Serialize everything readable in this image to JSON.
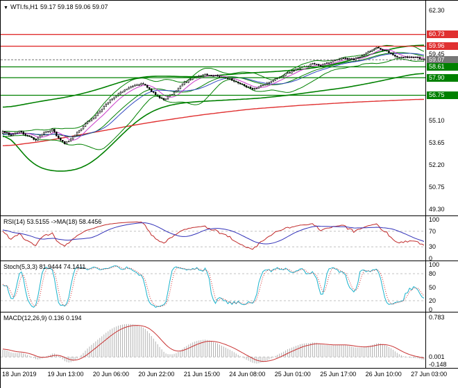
{
  "colors": {
    "resistance": "#e03030",
    "support": "#008000",
    "current": "#777777",
    "band": "#008000",
    "trend": "#e03030",
    "ma_blue": "#3048c0",
    "ma_magenta": "#c838c8",
    "rsi_line": "#c02828",
    "rsi_ma": "#3030b8",
    "stoch_k": "#18b2cc",
    "stoch_d": "#d03030",
    "macd_hist": "#b0b0b0",
    "macd_signal": "#c83030",
    "level": "#c0c0c0",
    "candle": "#000000"
  },
  "chart_data": [
    {
      "type": "candlestick",
      "marker": "▼",
      "title": "WTI.fs,H1",
      "quote": "59.17 59.18 59.06 59.07",
      "quote_ohlc": {
        "open": "59.17",
        "high": "59.18",
        "low": "59.06",
        "close": "59.07"
      },
      "y_axis": {
        "min": 49.3,
        "max": 62.3,
        "tick_labels": [
          "62.30",
          "59.45",
          "55.10",
          "53.65",
          "52.20",
          "50.75",
          "49.30"
        ]
      },
      "price_lines": [
        {
          "label": "60.73",
          "price": 60.73,
          "kind": "resistance"
        },
        {
          "label": "59.96",
          "price": 59.96,
          "kind": "resistance"
        },
        {
          "label": "59.07",
          "price": 59.07,
          "kind": "current"
        },
        {
          "label": "58.61",
          "price": 58.61,
          "kind": "support"
        },
        {
          "label": "57.90",
          "price": 57.9,
          "kind": "support"
        },
        {
          "label": "56.75",
          "price": 56.75,
          "kind": "support"
        }
      ],
      "bars_visible": 205,
      "close_anchors": [
        [
          0,
          54.35
        ],
        [
          4,
          54.15
        ],
        [
          8,
          54.4
        ],
        [
          12,
          54.1
        ],
        [
          16,
          53.85
        ],
        [
          20,
          54.3
        ],
        [
          24,
          54.5
        ],
        [
          27,
          53.95
        ],
        [
          30,
          53.55
        ],
        [
          34,
          54.05
        ],
        [
          38,
          54.6
        ],
        [
          42,
          55.1
        ],
        [
          46,
          55.55
        ],
        [
          52,
          56.45
        ],
        [
          58,
          57.05
        ],
        [
          63,
          57.35
        ],
        [
          68,
          57.5
        ],
        [
          73,
          56.9
        ],
        [
          78,
          56.45
        ],
        [
          83,
          56.95
        ],
        [
          88,
          57.6
        ],
        [
          93,
          57.9
        ],
        [
          98,
          58.1
        ],
        [
          104,
          58.0
        ],
        [
          110,
          57.8
        ],
        [
          116,
          57.45
        ],
        [
          121,
          57.1
        ],
        [
          126,
          57.45
        ],
        [
          132,
          57.8
        ],
        [
          138,
          58.2
        ],
        [
          144,
          58.55
        ],
        [
          150,
          58.8
        ],
        [
          154,
          58.7
        ],
        [
          160,
          59.0
        ],
        [
          165,
          59.2
        ],
        [
          170,
          59.05
        ],
        [
          176,
          59.5
        ],
        [
          181,
          59.85
        ],
        [
          186,
          59.65
        ],
        [
          190,
          59.3
        ],
        [
          194,
          59.2
        ],
        [
          198,
          59.3
        ],
        [
          202,
          59.15
        ],
        [
          204,
          59.07
        ]
      ],
      "overlay_lines": {
        "band_upper": [
          [
            0,
            55.9
          ],
          [
            10,
            56.15
          ],
          [
            20,
            56.4
          ],
          [
            30,
            56.6
          ],
          [
            40,
            56.9
          ],
          [
            50,
            57.3
          ],
          [
            60,
            57.75
          ],
          [
            70,
            58.0
          ],
          [
            80,
            58.0
          ],
          [
            92,
            57.95
          ],
          [
            104,
            58.05
          ],
          [
            118,
            58.2
          ],
          [
            132,
            58.3
          ],
          [
            146,
            58.45
          ],
          [
            158,
            58.7
          ],
          [
            170,
            59.1
          ],
          [
            180,
            59.5
          ],
          [
            190,
            59.85
          ],
          [
            198,
            60.0
          ],
          [
            204,
            60.05
          ]
        ],
        "band_lower": [
          [
            0,
            54.6
          ],
          [
            6,
            53.6
          ],
          [
            12,
            52.5
          ],
          [
            18,
            51.95
          ],
          [
            26,
            51.75
          ],
          [
            36,
            51.85
          ],
          [
            44,
            52.4
          ],
          [
            52,
            53.4
          ],
          [
            60,
            54.5
          ],
          [
            68,
            55.4
          ],
          [
            76,
            55.95
          ],
          [
            86,
            56.25
          ],
          [
            96,
            56.35
          ],
          [
            110,
            56.45
          ],
          [
            124,
            56.55
          ],
          [
            138,
            56.75
          ],
          [
            152,
            57.0
          ],
          [
            166,
            57.25
          ],
          [
            180,
            57.6
          ],
          [
            192,
            57.95
          ],
          [
            204,
            58.25
          ]
        ],
        "trend_line": [
          [
            0,
            53.4
          ],
          [
            20,
            53.75
          ],
          [
            45,
            54.35
          ],
          [
            70,
            54.95
          ],
          [
            95,
            55.45
          ],
          [
            120,
            55.85
          ],
          [
            145,
            56.1
          ],
          [
            170,
            56.3
          ],
          [
            204,
            56.5
          ]
        ]
      },
      "x_labels": [
        "18 Jun 2019",
        "19 Jun 13:00",
        "20 Jun 06:00",
        "20 Jun 22:00",
        "21 Jun 15:00",
        "24 Jun 08:00",
        "25 Jun 01:00",
        "25 Jun 17:00",
        "26 Jun 10:00",
        "27 Jun 03:00"
      ],
      "x_label_indices": [
        0,
        22,
        44,
        66,
        88,
        110,
        132,
        154,
        176,
        198
      ]
    },
    {
      "type": "line",
      "name": "RSI",
      "label": "RSI(14) 53.5155 ->MA(18) 58.4456",
      "params": "RSI(14), MA(18)",
      "values": [
        "53.5155",
        "58.4456"
      ],
      "range": [
        0,
        100
      ],
      "levels": [
        70,
        30
      ],
      "tick_labels": [
        "100",
        "70",
        "30",
        "0"
      ]
    },
    {
      "type": "line",
      "name": "Stochastic",
      "label": "Stoch(5,3,3) 81.9444 74.1411",
      "params": "Stoch(5,3,3)",
      "values": [
        "81.9444",
        "74.1411"
      ],
      "range": [
        0,
        100
      ],
      "levels": [
        80,
        20
      ],
      "tick_labels": [
        "100",
        "80",
        "50",
        "20",
        "0"
      ]
    },
    {
      "type": "macd",
      "name": "MACD",
      "label": "MACD(12,26,9) 0.136 0.194",
      "params": "MACD(12,26,9)",
      "values": [
        "0.136",
        "0.194"
      ],
      "range": [
        -0.175,
        0.83
      ],
      "tick_labels": [
        "0.783",
        "0.001",
        "-0.148"
      ]
    }
  ]
}
